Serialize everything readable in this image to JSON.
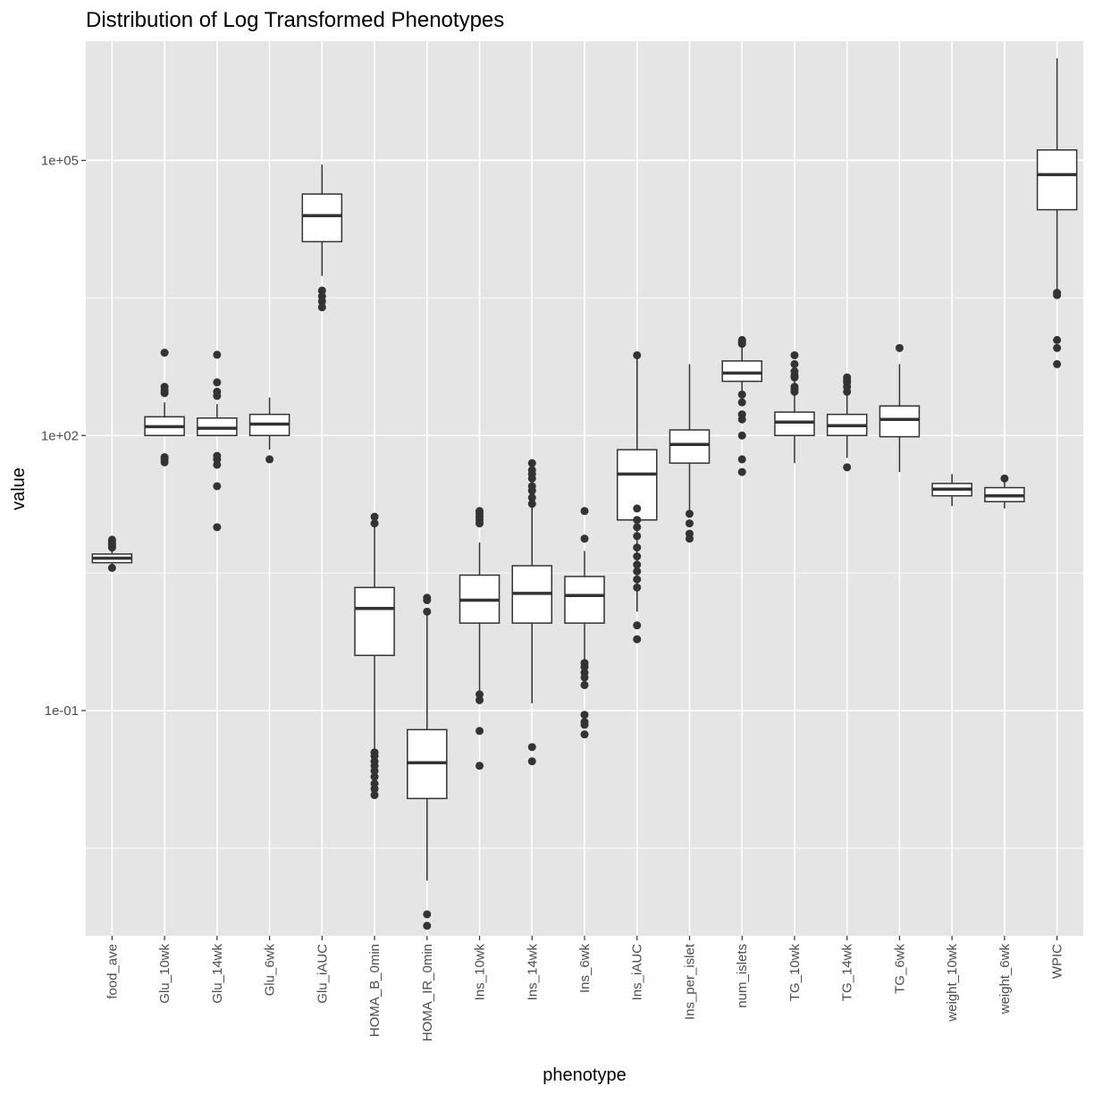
{
  "chart_data": {
    "type": "box",
    "title": "Distribution of Log Transformed Phenotypes",
    "xlabel": "phenotype",
    "ylabel": "value",
    "y_scale": "log10",
    "ylim": [
      0.00035,
      2000000
    ],
    "y_ticks": [
      {
        "value": 0.1,
        "label": "1e-01"
      },
      {
        "value": 100,
        "label": "1e+02"
      },
      {
        "value": 100000,
        "label": "1e+05"
      }
    ],
    "grid": true,
    "legend": "none",
    "colors": {
      "panel_background": "#e5e5e5",
      "grid_line": "#ffffff",
      "box_fill": "#ffffff",
      "box_line": "#333333",
      "outlier": "#333333",
      "tick_text": "#4d4d4d"
    },
    "categories": [
      "food_ave",
      "Glu_10wk",
      "Glu_14wk",
      "Glu_6wk",
      "Glu_iAUC",
      "HOMA_B_0min",
      "HOMA_IR_0min",
      "Ins_10wk",
      "Ins_14wk",
      "Ins_6wk",
      "Ins_iAUC",
      "Ins_per_islet",
      "num_islets",
      "TG_10wk",
      "TG_14wk",
      "TG_6wk",
      "weight_10wk",
      "weight_6wk",
      "WPIC"
    ],
    "boxes": [
      {
        "name": "food_ave",
        "whisker_low": 3.6,
        "q1": 4.1,
        "median": 4.6,
        "q3": 5.1,
        "whisker_high": 5.8,
        "outliers": [
          3.6,
          6.0,
          6.3,
          6.6,
          7.0,
          7.3
        ]
      },
      {
        "name": "Glu_10wk",
        "whisker_low": 100,
        "q1": 100,
        "median": 125,
        "q3": 160,
        "whisker_high": 230,
        "outliers": [
          51,
          55,
          58,
          290,
          310,
          340,
          800
        ]
      },
      {
        "name": "Glu_14wk",
        "whisker_low": 100,
        "q1": 100,
        "median": 120,
        "q3": 155,
        "whisker_high": 220,
        "outliers": [
          10,
          28,
          48,
          55,
          60,
          270,
          300,
          380,
          760
        ]
      },
      {
        "name": "Glu_6wk",
        "whisker_low": 70,
        "q1": 100,
        "median": 133,
        "q3": 170,
        "whisker_high": 260,
        "outliers": [
          55
        ]
      },
      {
        "name": "Glu_iAUC",
        "whisker_low": 5500,
        "q1": 13000,
        "median": 25000,
        "q3": 43000,
        "whisker_high": 90000,
        "outliers": [
          2500,
          2900,
          3300,
          3800
        ]
      },
      {
        "name": "HOMA_B_0min",
        "whisker_low": 0.035,
        "q1": 0.4,
        "median": 1.3,
        "q3": 2.2,
        "whisker_high": 12,
        "outliers": [
          0.012,
          0.014,
          0.016,
          0.019,
          0.022,
          0.025,
          0.028,
          0.032,
          0.035,
          11,
          13
        ]
      },
      {
        "name": "HOMA_IR_0min",
        "whisker_low": 0.0014,
        "q1": 0.011,
        "median": 0.027,
        "q3": 0.062,
        "whisker_high": 1.2,
        "outliers": [
          0.00045,
          0.0006,
          1.2,
          1.6,
          1.7
        ]
      },
      {
        "name": "Ins_10wk",
        "whisker_low": 0.14,
        "q1": 0.9,
        "median": 1.6,
        "q3": 3.0,
        "whisker_high": 6.8,
        "outliers": [
          0.025,
          0.06,
          0.13,
          0.15,
          11,
          12,
          13,
          14,
          15
        ]
      },
      {
        "name": "Ins_14wk",
        "whisker_low": 0.12,
        "q1": 0.9,
        "median": 1.9,
        "q3": 3.8,
        "whisker_high": 18,
        "outliers": [
          0.028,
          0.04,
          18,
          21,
          25,
          28,
          34,
          38,
          42,
          50
        ]
      },
      {
        "name": "Ins_6wk",
        "whisker_low": 0.18,
        "q1": 0.9,
        "median": 1.8,
        "q3": 2.9,
        "whisker_high": 5.5,
        "outliers": [
          0.055,
          0.07,
          0.075,
          0.09,
          0.19,
          0.23,
          0.26,
          0.3,
          0.33,
          7.5,
          15
        ]
      },
      {
        "name": "Ins_iAUC",
        "whisker_low": 1.2,
        "q1": 12,
        "median": 38,
        "q3": 70,
        "whisker_high": 800,
        "outliers": [
          0.6,
          0.85,
          2.2,
          2.7,
          3.3,
          3.9,
          4.8,
          6,
          8,
          10,
          12,
          16,
          750
        ]
      },
      {
        "name": "Ins_per_islet",
        "whisker_low": 15,
        "q1": 50,
        "median": 80,
        "q3": 115,
        "whisker_high": 600,
        "outliers": [
          7.5,
          8.5,
          11,
          14
        ]
      },
      {
        "name": "num_islets",
        "whisker_low": 300,
        "q1": 390,
        "median": 480,
        "q3": 650,
        "whisker_high": 1000,
        "outliers": [
          40,
          55,
          100,
          150,
          170,
          230,
          280,
          1000,
          1050,
          1100
        ]
      },
      {
        "name": "TG_10wk",
        "whisker_low": 50,
        "q1": 100,
        "median": 140,
        "q3": 180,
        "whisker_high": 430,
        "outliers": [
          300,
          320,
          340,
          430,
          450,
          500,
          600,
          750
        ]
      },
      {
        "name": "TG_14wk",
        "whisker_low": 57,
        "q1": 100,
        "median": 128,
        "q3": 170,
        "whisker_high": 300,
        "outliers": [
          45,
          300,
          340,
          380,
          400,
          430
        ]
      },
      {
        "name": "TG_6wk",
        "whisker_low": 40,
        "q1": 97,
        "median": 150,
        "q3": 210,
        "whisker_high": 600,
        "outliers": [
          900
        ]
      },
      {
        "name": "weight_10wk",
        "whisker_low": 17,
        "q1": 22,
        "median": 26,
        "q3": 30,
        "whisker_high": 38,
        "outliers": []
      },
      {
        "name": "weight_6wk",
        "whisker_low": 16,
        "q1": 19,
        "median": 22,
        "q3": 27,
        "whisker_high": 33,
        "outliers": [
          34
        ]
      },
      {
        "name": "WPIC",
        "whisker_low": 3600,
        "q1": 29000,
        "median": 70000,
        "q3": 130000,
        "whisker_high": 1300000,
        "outliers": [
          600,
          900,
          1100,
          3400,
          3600
        ]
      }
    ]
  }
}
